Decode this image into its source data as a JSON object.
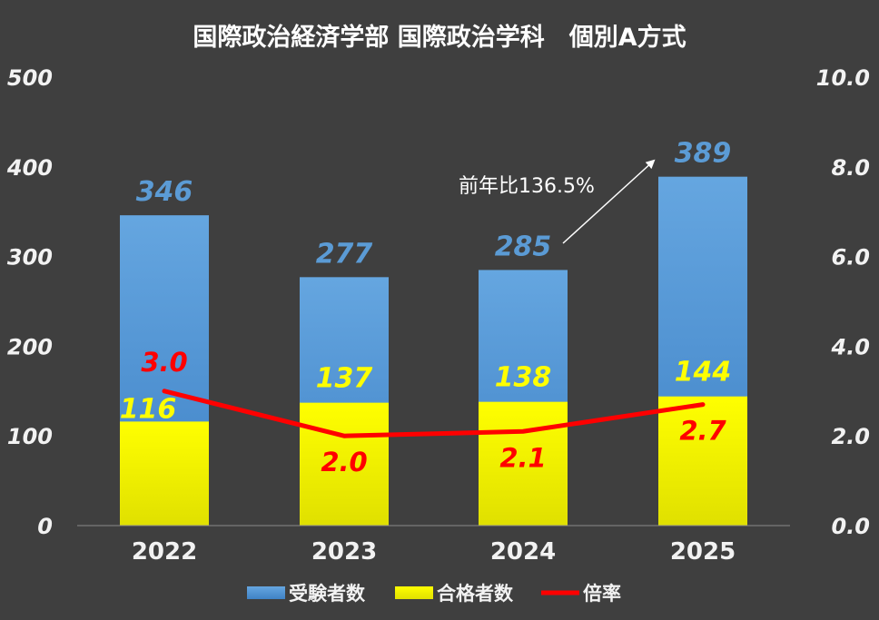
{
  "chart_data": {
    "type": "bar",
    "title": "国際政治経済学部 国際政治学科　個別A方式",
    "categories": [
      "2022",
      "2023",
      "2024",
      "2025"
    ],
    "series": [
      {
        "name": "受験者数",
        "type": "bar",
        "axis": "left",
        "values": [
          346,
          277,
          285,
          389
        ],
        "labels": [
          "346",
          "277",
          "285",
          "389"
        ],
        "color": "#5b9bd5"
      },
      {
        "name": "合格者数",
        "type": "bar",
        "axis": "left",
        "values": [
          116,
          137,
          138,
          144
        ],
        "labels": [
          "116",
          "137",
          "138",
          "144"
        ],
        "color": "#ffff00"
      },
      {
        "name": "倍率",
        "type": "line",
        "axis": "right",
        "values": [
          3.0,
          2.0,
          2.1,
          2.7
        ],
        "labels": [
          "3.0",
          "2.0",
          "2.1",
          "2.7"
        ],
        "color": "#ff0000"
      }
    ],
    "y_left": {
      "ylim": [
        0,
        500
      ],
      "ticks": [
        "0",
        "100",
        "200",
        "300",
        "400",
        "500"
      ]
    },
    "y_right": {
      "ylim": [
        0,
        10
      ],
      "ticks": [
        "0.0",
        "2.0",
        "4.0",
        "6.0",
        "8.0",
        "10.0"
      ]
    },
    "annotation": {
      "text": "前年比136.5%",
      "from_category": "2024",
      "to_category": "2025"
    },
    "legend": "bottom",
    "grid": false
  }
}
